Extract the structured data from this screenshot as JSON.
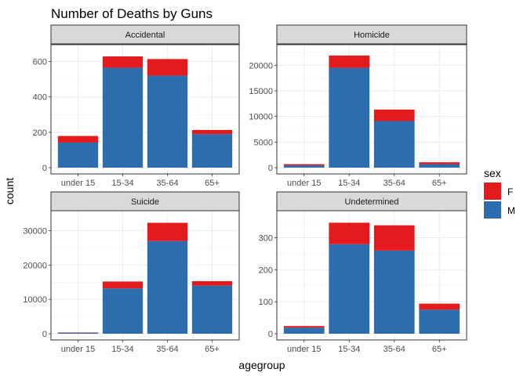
{
  "chart_data": {
    "type": "bar",
    "stacked": true,
    "title": "Number of Deaths by Guns",
    "xlabel": "agegroup",
    "ylabel": "count",
    "categories": [
      "under 15",
      "15-34",
      "35-64",
      "65+"
    ],
    "legend": {
      "title": "sex",
      "position": "right",
      "items": [
        {
          "label": "F",
          "color": "#E41A1C"
        },
        {
          "label": "M",
          "color": "#2B6DAD"
        }
      ]
    },
    "grid": true,
    "facets": [
      {
        "title": "Accidental",
        "ylim": [
          0,
          660
        ],
        "yticks": [
          0,
          200,
          400,
          600
        ],
        "series": [
          {
            "name": "M",
            "values": [
              142,
              565,
              520,
              190
            ]
          },
          {
            "name": "F",
            "values": [
              37,
              64,
              94,
              23
            ]
          }
        ]
      },
      {
        "title": "Homicide",
        "ylim": [
          0,
          22800
        ],
        "yticks": [
          0,
          5000,
          10000,
          15000,
          20000
        ],
        "series": [
          {
            "name": "M",
            "values": [
              450,
              19500,
              9100,
              680
            ]
          },
          {
            "name": "F",
            "values": [
              230,
              2400,
              2250,
              370
            ]
          }
        ]
      },
      {
        "title": "Suicide",
        "ylim": [
          0,
          34000
        ],
        "yticks": [
          0,
          10000,
          20000,
          30000
        ],
        "series": [
          {
            "name": "M",
            "values": [
              300,
              13200,
              27000,
              14000
            ]
          },
          {
            "name": "F",
            "values": [
              80,
              2000,
              5300,
              1300
            ]
          }
        ]
      },
      {
        "title": "Undetermined",
        "ylim": [
          0,
          365
        ],
        "yticks": [
          0,
          100,
          200,
          300
        ],
        "series": [
          {
            "name": "M",
            "values": [
              19,
              280,
              260,
              75
            ]
          },
          {
            "name": "F",
            "values": [
              5,
              67,
              79,
              19
            ]
          }
        ]
      }
    ]
  }
}
